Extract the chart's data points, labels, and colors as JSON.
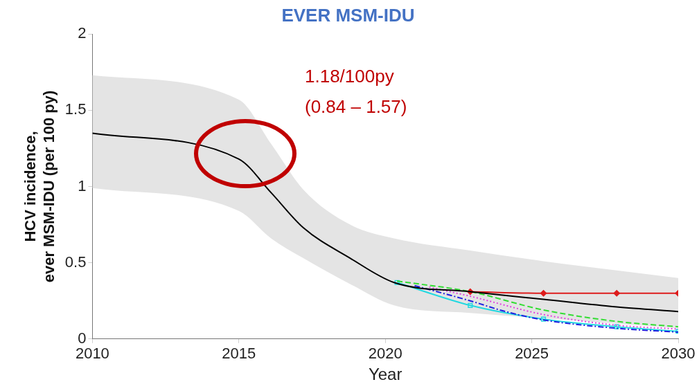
{
  "chart_data": {
    "type": "line",
    "title": "EVER MSM-IDU",
    "xlabel": "Year",
    "ylabel": "HCV incidence,\never MSM-IDU (per 100 py)",
    "annotations": [
      "1.18/100py",
      "(0.84 – 1.57)"
    ],
    "xlim": [
      2010,
      2030
    ],
    "xticks": [
      2010,
      2015,
      2020,
      2025,
      2030
    ],
    "ylim": [
      0,
      2
    ],
    "yticks": [
      0,
      0.5,
      1,
      1.5,
      2
    ],
    "grid": false,
    "legend": false,
    "series": [
      {
        "color": "#000000",
        "line_style": "solid",
        "marker": "none",
        "x": [
          2010,
          2015,
          2016.1,
          2017.2,
          2018.8,
          2020.3,
          2022.9,
          2025.4,
          2027.9,
          2030
        ],
        "values": [
          1.35,
          1.18,
          0.96,
          0.73,
          0.53,
          0.37,
          0.31,
          0.26,
          0.21,
          0.18
        ],
        "lower": [
          0.99,
          0.84,
          0.66,
          0.53,
          0.36,
          0.22,
          0.17,
          0.135,
          0.1,
          0.07
        ],
        "upper": [
          1.73,
          1.57,
          1.28,
          0.98,
          0.75,
          0.66,
          0.58,
          0.51,
          0.45,
          0.4
        ]
      },
      {
        "color": "#dd1c1c",
        "line_style": "solid",
        "marker": "diamond",
        "x": [
          2022.9,
          2025.4,
          2027.9,
          2030
        ],
        "values": [
          0.31,
          0.3,
          0.3,
          0.3
        ]
      },
      {
        "color": "#33dd33",
        "line_style": "dashed",
        "marker": "none",
        "x": [
          2020.4,
          2022.9,
          2025.4,
          2027.9,
          2030
        ],
        "values": [
          0.38,
          0.31,
          0.19,
          0.115,
          0.08
        ]
      },
      {
        "color": "#e040e0",
        "line_style": "dotted",
        "marker": "none",
        "x": [
          2021.5,
          2022.9,
          2025.4,
          2027.9,
          2030
        ],
        "values": [
          0.34,
          0.28,
          0.16,
          0.09,
          0.065
        ]
      },
      {
        "color": "#2020e0",
        "line_style": "dashdot",
        "marker": "none",
        "x": [
          2021,
          2022.9,
          2024.1,
          2025.4,
          2027.9,
          2030
        ],
        "values": [
          0.35,
          0.25,
          0.18,
          0.125,
          0.07,
          0.045
        ]
      },
      {
        "color": "#22d8e0",
        "line_style": "solid",
        "marker": "square",
        "x": [
          2020.4,
          2022.9,
          2025.4,
          2027.9,
          2030
        ],
        "values": [
          0.37,
          0.22,
          0.13,
          0.08,
          0.05
        ]
      }
    ]
  }
}
